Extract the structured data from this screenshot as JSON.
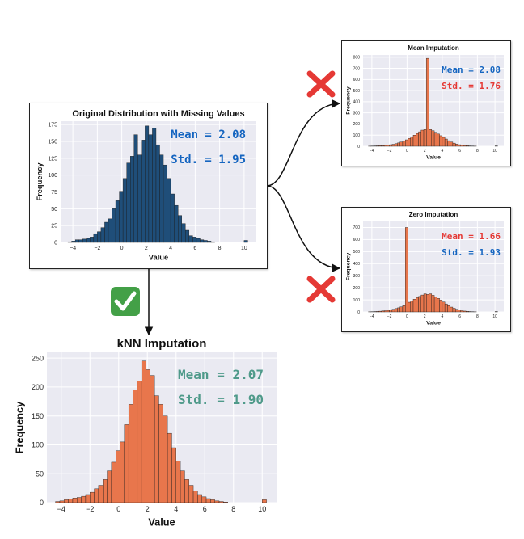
{
  "colors": {
    "blue_bar": "#1f4e79",
    "orange_bar": "#e8764c",
    "plot_bg": "#eaeaf2",
    "mean_blue": "#1565c0",
    "std_red": "#e53935",
    "stat_teal": "#4f9a8a",
    "cross_red": "#e53935",
    "check_green": "#43a047"
  },
  "icons": {
    "reject": "cross-mark-icon",
    "accept": "check-mark-icon",
    "arrow": "arrow-icon"
  },
  "stat_labels": {
    "mean": "Mean",
    "std": "Std."
  },
  "chart_data": [
    {
      "id": "original",
      "type": "bar",
      "title": "Original Distribution with Missing Values",
      "xlabel": "Value",
      "ylabel": "Frequency",
      "xlim": [
        -5,
        11
      ],
      "ylim": [
        0,
        180
      ],
      "xticks": [
        -4,
        -2,
        0,
        2,
        4,
        6,
        8,
        10
      ],
      "yticks": [
        0,
        25,
        50,
        75,
        100,
        125,
        150,
        175
      ],
      "grid": true,
      "stats": {
        "mean": "2.08",
        "std": "1.95"
      },
      "bins": {
        "start": -4.4,
        "width": 0.3,
        "counts": [
          1,
          2,
          4,
          4,
          5,
          6,
          8,
          13,
          16,
          22,
          30,
          35,
          50,
          62,
          76,
          95,
          118,
          128,
          160,
          130,
          152,
          173,
          160,
          170,
          145,
          130,
          115,
          95,
          72,
          55,
          40,
          28,
          18,
          10,
          8,
          6,
          4,
          3,
          2,
          1,
          0,
          0,
          0,
          0,
          0,
          0,
          0,
          0,
          3
        ]
      }
    },
    {
      "id": "mean",
      "type": "bar",
      "title": "Mean Imputation",
      "xlabel": "Value",
      "ylabel": "Frequency",
      "xlim": [
        -5,
        11
      ],
      "ylim": [
        0,
        820
      ],
      "xticks": [
        -4,
        -2,
        0,
        2,
        4,
        6,
        8,
        10
      ],
      "yticks": [
        0,
        100,
        200,
        300,
        400,
        500,
        600,
        700,
        800
      ],
      "grid": true,
      "stats": {
        "mean": "2.08",
        "std": "1.76"
      },
      "bins": {
        "start": -4.4,
        "width": 0.3,
        "counts": [
          1,
          2,
          3,
          4,
          5,
          6,
          8,
          10,
          14,
          18,
          24,
          30,
          38,
          48,
          58,
          70,
          85,
          100,
          115,
          130,
          145,
          150,
          790,
          150,
          140,
          125,
          110,
          95,
          80,
          65,
          50,
          38,
          28,
          20,
          14,
          10,
          7,
          5,
          3,
          2,
          1,
          0,
          0,
          0,
          0,
          0,
          0,
          0,
          3
        ]
      }
    },
    {
      "id": "zero",
      "type": "bar",
      "title": "Zero Imputation",
      "xlabel": "Value",
      "ylabel": "Frequency",
      "xlim": [
        -5,
        11
      ],
      "ylim": [
        0,
        750
      ],
      "xticks": [
        -4,
        -2,
        0,
        2,
        4,
        6,
        8,
        10
      ],
      "yticks": [
        0,
        100,
        200,
        300,
        400,
        500,
        600,
        700
      ],
      "grid": true,
      "stats": {
        "mean": "1.66",
        "std": "1.93"
      },
      "bins": {
        "start": -4.4,
        "width": 0.3,
        "counts": [
          1,
          2,
          3,
          4,
          6,
          8,
          10,
          13,
          17,
          22,
          28,
          34,
          42,
          52,
          700,
          80,
          92,
          105,
          118,
          128,
          140,
          150,
          145,
          150,
          138,
          125,
          112,
          98,
          82,
          66,
          52,
          40,
          30,
          22,
          15,
          10,
          7,
          5,
          3,
          2,
          1,
          0,
          0,
          0,
          0,
          0,
          0,
          0,
          3
        ]
      }
    },
    {
      "id": "knn",
      "type": "bar",
      "title": "kNN Imputation",
      "xlabel": "Value",
      "ylabel": "Frequency",
      "xlim": [
        -5,
        11
      ],
      "ylim": [
        0,
        260
      ],
      "xticks": [
        -4,
        -2,
        0,
        2,
        4,
        6,
        8,
        10
      ],
      "yticks": [
        0,
        50,
        100,
        150,
        200,
        250
      ],
      "grid": true,
      "stats": {
        "mean": "2.07",
        "std": "1.90"
      },
      "bins": {
        "start": -4.4,
        "width": 0.3,
        "counts": [
          2,
          3,
          5,
          6,
          8,
          9,
          11,
          14,
          18,
          24,
          30,
          40,
          55,
          70,
          90,
          105,
          135,
          170,
          195,
          210,
          245,
          230,
          220,
          185,
          170,
          150,
          120,
          95,
          72,
          55,
          40,
          30,
          20,
          14,
          10,
          7,
          5,
          3,
          2,
          1,
          0,
          0,
          0,
          0,
          0,
          0,
          0,
          0,
          5
        ]
      }
    }
  ]
}
